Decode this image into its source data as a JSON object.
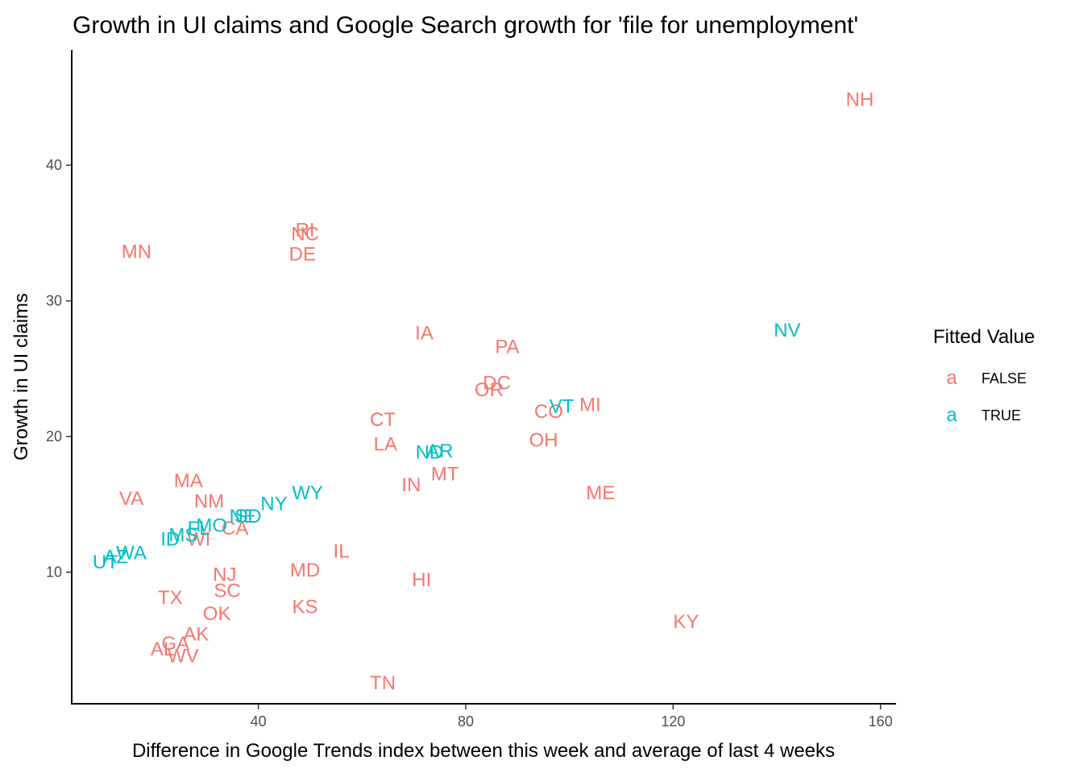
{
  "chart_data": {
    "type": "scatter",
    "title": "Growth in UI claims and Google Search growth for 'file for unemployment'",
    "xlabel": "Difference in Google Trends index between this week and average of last 4 weeks",
    "ylabel": "Growth in UI claims",
    "xlim": [
      4,
      163
    ],
    "ylim": [
      0.3,
      48.5
    ],
    "xticks": [
      40,
      80,
      120,
      160
    ],
    "yticks": [
      10,
      20,
      30,
      40
    ],
    "grid": false,
    "legend": {
      "title": "Fitted Value",
      "position": "right",
      "key_glyph": "a",
      "entries": [
        {
          "label": "FALSE",
          "color": "#F8766D"
        },
        {
          "label": "TRUE",
          "color": "#00BFC4"
        }
      ]
    },
    "series": [
      {
        "name": "FALSE",
        "color": "#F8766D",
        "points": [
          {
            "label": "NH",
            "x": 156,
            "y": 44.9
          },
          {
            "label": "RI",
            "x": 49,
            "y": 35.3
          },
          {
            "label": "NC",
            "x": 49,
            "y": 35.0
          },
          {
            "label": "DE",
            "x": 48.5,
            "y": 33.5
          },
          {
            "label": "MN",
            "x": 16.5,
            "y": 33.7
          },
          {
            "label": "IA",
            "x": 72,
            "y": 27.7
          },
          {
            "label": "PA",
            "x": 88,
            "y": 26.7
          },
          {
            "label": "DC",
            "x": 86,
            "y": 24.0
          },
          {
            "label": "OR",
            "x": 84.5,
            "y": 23.5
          },
          {
            "label": "MI",
            "x": 104,
            "y": 22.4
          },
          {
            "label": "CO",
            "x": 96,
            "y": 21.9
          },
          {
            "label": "CT",
            "x": 64,
            "y": 21.3
          },
          {
            "label": "OH",
            "x": 95,
            "y": 19.8
          },
          {
            "label": "LA",
            "x": 64.5,
            "y": 19.5
          },
          {
            "label": "MT",
            "x": 76,
            "y": 17.3
          },
          {
            "label": "IN",
            "x": 69.5,
            "y": 16.5
          },
          {
            "label": "ME",
            "x": 106,
            "y": 15.9
          },
          {
            "label": "MA",
            "x": 26.5,
            "y": 16.8
          },
          {
            "label": "VA",
            "x": 15.5,
            "y": 15.5
          },
          {
            "label": "NM",
            "x": 30.5,
            "y": 15.3
          },
          {
            "label": "CA",
            "x": 35.5,
            "y": 13.3
          },
          {
            "label": "WI",
            "x": 28.5,
            "y": 12.5
          },
          {
            "label": "IL",
            "x": 56,
            "y": 11.6
          },
          {
            "label": "NJ",
            "x": 33.5,
            "y": 9.9
          },
          {
            "label": "MD",
            "x": 49,
            "y": 10.2
          },
          {
            "label": "HI",
            "x": 71.5,
            "y": 9.5
          },
          {
            "label": "SC",
            "x": 34,
            "y": 8.7
          },
          {
            "label": "TX",
            "x": 23,
            "y": 8.2
          },
          {
            "label": "KS",
            "x": 49,
            "y": 7.5
          },
          {
            "label": "OK",
            "x": 32,
            "y": 7.0
          },
          {
            "label": "KY",
            "x": 122.5,
            "y": 6.4
          },
          {
            "label": "AK",
            "x": 28,
            "y": 5.5
          },
          {
            "label": "GA",
            "x": 24,
            "y": 4.8
          },
          {
            "label": "AL",
            "x": 21.5,
            "y": 4.4
          },
          {
            "label": "WV",
            "x": 25.5,
            "y": 3.9
          },
          {
            "label": "TN",
            "x": 64,
            "y": 1.9
          }
        ]
      },
      {
        "name": "TRUE",
        "color": "#00BFC4",
        "points": [
          {
            "label": "NV",
            "x": 142,
            "y": 27.9
          },
          {
            "label": "VT",
            "x": 98.5,
            "y": 22.3
          },
          {
            "label": "ND",
            "x": 73,
            "y": 18.9
          },
          {
            "label": "AR",
            "x": 75,
            "y": 19.0
          },
          {
            "label": "WY",
            "x": 49.5,
            "y": 15.9
          },
          {
            "label": "NY",
            "x": 43,
            "y": 15.1
          },
          {
            "label": "NE",
            "x": 37,
            "y": 14.2
          },
          {
            "label": "SD",
            "x": 38,
            "y": 14.2
          },
          {
            "label": "MO",
            "x": 31,
            "y": 13.5
          },
          {
            "label": "FL",
            "x": 28.5,
            "y": 13.3
          },
          {
            "label": "MS",
            "x": 25.5,
            "y": 12.8
          },
          {
            "label": "ID",
            "x": 23,
            "y": 12.5
          },
          {
            "label": "WA",
            "x": 15.5,
            "y": 11.5
          },
          {
            "label": "AZ",
            "x": 12.5,
            "y": 11.2
          },
          {
            "label": "UT",
            "x": 10.5,
            "y": 10.8
          }
        ]
      }
    ]
  }
}
